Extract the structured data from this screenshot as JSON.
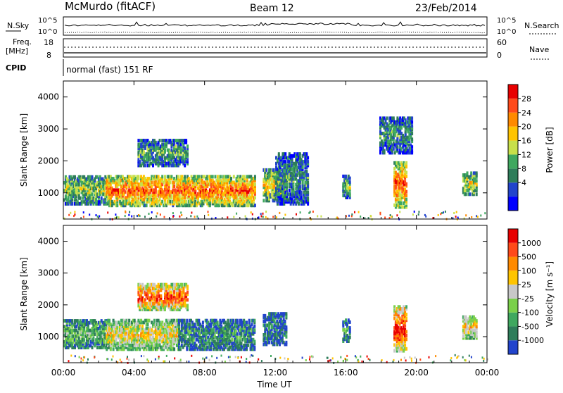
{
  "header": {
    "station": "McMurdo (fitACF)",
    "beam": "Beam 12",
    "date": "23/Feb/2014"
  },
  "summary": {
    "nsky_label": "N.Sky",
    "nsearch_label": "N.Search",
    "freq_label": "Freq.",
    "freq_unit": "[MHz]",
    "nave_label": "Nave",
    "cpid_label": "CPID",
    "cpid_text": "normal (fast) 151 RF",
    "noise_ticks_left": [
      "10^5",
      "10^0"
    ],
    "noise_ticks_right": [
      "10^5",
      "10^0"
    ],
    "freq_ticks": [
      "18",
      "8"
    ],
    "nave_ticks": [
      "60",
      "0"
    ]
  },
  "chart_data": [
    {
      "type": "heatmap",
      "title": "",
      "xlabel": "Time UT",
      "ylabel": "Slant Range [km]",
      "x_ticks": [
        "00:00",
        "04:00",
        "08:00",
        "12:00",
        "16:00",
        "20:00",
        "00:00"
      ],
      "y_ticks": [
        "1000",
        "2000",
        "3000",
        "4000"
      ],
      "ylim": [
        180,
        4500
      ],
      "colorbar": {
        "label": "Power [dB]",
        "ticks": [
          "28",
          "24",
          "20",
          "16",
          "12",
          "8",
          "4"
        ],
        "colors": [
          "#0000ff",
          "#2244cc",
          "#2e7d5a",
          "#3fa85f",
          "#c7e04a",
          "#ffc400",
          "#ff8a00",
          "#ff4a1a",
          "#e80000"
        ]
      },
      "echo_regions": [
        {
          "t0": 0.0,
          "t1": 2.6,
          "r0": 600,
          "r1": 1500,
          "level": 0.45
        },
        {
          "t0": 2.4,
          "t1": 10.8,
          "r0": 550,
          "r1": 1500,
          "level": 0.75
        },
        {
          "t0": 4.2,
          "t1": 7.0,
          "r0": 1800,
          "r1": 2600,
          "level": 0.35
        },
        {
          "t0": 11.3,
          "t1": 12.6,
          "r0": 700,
          "r1": 1700,
          "level": 0.55
        },
        {
          "t0": 12.0,
          "t1": 13.8,
          "r0": 600,
          "r1": 2200,
          "level": 0.3
        },
        {
          "t0": 15.8,
          "t1": 16.2,
          "r0": 800,
          "r1": 1500,
          "level": 0.4
        },
        {
          "t0": 18.7,
          "t1": 19.4,
          "r0": 500,
          "r1": 1900,
          "level": 0.8
        },
        {
          "t0": 17.9,
          "t1": 19.7,
          "r0": 2200,
          "r1": 3300,
          "level": 0.3
        },
        {
          "t0": 22.6,
          "t1": 23.4,
          "r0": 900,
          "r1": 1600,
          "level": 0.5
        }
      ]
    },
    {
      "type": "heatmap",
      "title": "",
      "xlabel": "Time UT",
      "ylabel": "Slant Range [km]",
      "x_ticks": [
        "00:00",
        "04:00",
        "08:00",
        "12:00",
        "16:00",
        "20:00",
        "00:00"
      ],
      "y_ticks": [
        "1000",
        "2000",
        "3000",
        "4000"
      ],
      "ylim": [
        180,
        4500
      ],
      "colorbar": {
        "label": "Velocity [m s⁻¹]",
        "ticks": [
          "1000",
          "500",
          "100",
          "25",
          "-25",
          "-100",
          "-500",
          "-1000"
        ],
        "colors": [
          "#2244cc",
          "#2e7d5a",
          "#3fa85f",
          "#7ad04a",
          "#c8c8c8",
          "#ffc400",
          "#ff8a00",
          "#ff4a1a",
          "#e80000"
        ]
      },
      "echo_regions": [
        {
          "t0": 0.0,
          "t1": 2.6,
          "r0": 600,
          "r1": 1500,
          "level": 0.3
        },
        {
          "t0": 2.4,
          "t1": 6.5,
          "r0": 550,
          "r1": 1500,
          "level": 0.55
        },
        {
          "t0": 6.5,
          "t1": 10.8,
          "r0": 550,
          "r1": 1500,
          "level": 0.2
        },
        {
          "t0": 4.2,
          "t1": 7.0,
          "r0": 1800,
          "r1": 2600,
          "level": 0.8
        },
        {
          "t0": 11.3,
          "t1": 12.6,
          "r0": 700,
          "r1": 1700,
          "level": 0.15
        },
        {
          "t0": 15.8,
          "t1": 16.2,
          "r0": 800,
          "r1": 1500,
          "level": 0.2
        },
        {
          "t0": 18.7,
          "t1": 19.4,
          "r0": 500,
          "r1": 1900,
          "level": 0.9
        },
        {
          "t0": 22.6,
          "t1": 23.4,
          "r0": 900,
          "r1": 1600,
          "level": 0.6
        }
      ]
    }
  ]
}
